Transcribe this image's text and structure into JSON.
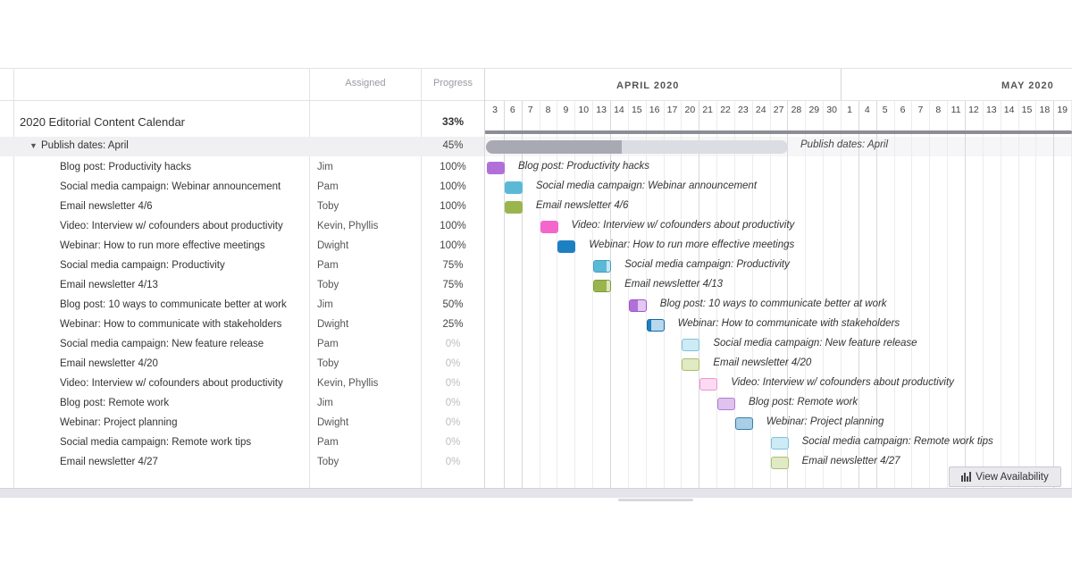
{
  "grid": {
    "columns": {
      "assigned": "Assigned",
      "progress": "Progress"
    },
    "project": {
      "name": "2020 Editorial Content Calendar",
      "progress": "33%"
    },
    "group": {
      "name": "Publish dates: April",
      "progress": "45%",
      "progress_value": 0.45
    },
    "tasks": [
      {
        "name": "Blog post: Productivity hacks",
        "assigned": "Jim",
        "progress": "100%",
        "progress_value": 1.0,
        "start_day": 0,
        "color": "#b070d8",
        "light": "#e2c8f2",
        "border": "#9a58c4"
      },
      {
        "name": "Social media campaign: Webinar announcement",
        "assigned": "Pam",
        "progress": "100%",
        "progress_value": 1.0,
        "start_day": 1,
        "color": "#5bb9d6",
        "light": "#c6e7f2",
        "border": "#3c9fbd"
      },
      {
        "name": "Email newsletter 4/6",
        "assigned": "Toby",
        "progress": "100%",
        "progress_value": 1.0,
        "start_day": 1,
        "color": "#9ab54e",
        "light": "#dbe7b9",
        "border": "#7f9c36"
      },
      {
        "name": "Video: Interview w/ cofounders about productivity",
        "assigned": "Kevin, Phyllis",
        "progress": "100%",
        "progress_value": 1.0,
        "start_day": 3,
        "color": "#f466cc",
        "light": "#fcd0ef",
        "border": "#e04ab5"
      },
      {
        "name": "Webinar: How to run more effective meetings",
        "assigned": "Dwight",
        "progress": "100%",
        "progress_value": 1.0,
        "start_day": 4,
        "color": "#1c80c2",
        "light": "#b8d8ee",
        "border": "#14679f"
      },
      {
        "name": "Social media campaign: Productivity",
        "assigned": "Pam",
        "progress": "75%",
        "progress_value": 0.75,
        "start_day": 6,
        "color": "#5bb9d6",
        "light": "#c6e7f2",
        "border": "#3c9fbd"
      },
      {
        "name": "Email newsletter 4/13",
        "assigned": "Toby",
        "progress": "75%",
        "progress_value": 0.75,
        "start_day": 6,
        "color": "#9ab54e",
        "light": "#dbe7b9",
        "border": "#7f9c36"
      },
      {
        "name": "Blog post: 10 ways to communicate better at work",
        "assigned": "Jim",
        "progress": "50%",
        "progress_value": 0.5,
        "start_day": 8,
        "color": "#b070d8",
        "light": "#e2c8f2",
        "border": "#9a58c4"
      },
      {
        "name": "Webinar: How to communicate with stakeholders",
        "assigned": "Dwight",
        "progress": "25%",
        "progress_value": 0.25,
        "start_day": 9,
        "color": "#1c80c2",
        "light": "#b8d8ee",
        "border": "#14679f"
      },
      {
        "name": "Social media campaign: New feature release",
        "assigned": "Pam",
        "progress": "0%",
        "progress_value": 0,
        "start_day": 11,
        "color": "#5bb9d6",
        "light": "#cdebf5",
        "border": "#7cc3da"
      },
      {
        "name": "Email newsletter 4/20",
        "assigned": "Toby",
        "progress": "0%",
        "progress_value": 0,
        "start_day": 11,
        "color": "#9ab54e",
        "light": "#e0eac4",
        "border": "#a9c06a"
      },
      {
        "name": "Video: Interview w/ cofounders about productivity",
        "assigned": "Kevin, Phyllis",
        "progress": "0%",
        "progress_value": 0,
        "start_day": 12,
        "color": "#f466cc",
        "light": "#fcdaf2",
        "border": "#f292d6"
      },
      {
        "name": "Blog post: Remote work",
        "assigned": "Jim",
        "progress": "0%",
        "progress_value": 0,
        "start_day": 13,
        "color": "#b070d8",
        "light": "#dfc2ef",
        "border": "#b07fd0"
      },
      {
        "name": "Webinar: Project planning",
        "assigned": "Dwight",
        "progress": "0%",
        "progress_value": 0,
        "start_day": 14,
        "color": "#1c80c2",
        "light": "#a9cfe6",
        "border": "#3a7ea8"
      },
      {
        "name": "Social media campaign: Remote work tips",
        "assigned": "Pam",
        "progress": "0%",
        "progress_value": 0,
        "start_day": 16,
        "color": "#5bb9d6",
        "light": "#cdebf5",
        "border": "#7cc3da"
      },
      {
        "name": "Email newsletter 4/27",
        "assigned": "Toby",
        "progress": "0%",
        "progress_value": 0,
        "start_day": 16,
        "color": "#9ab54e",
        "light": "#e0eac4",
        "border": "#a9c06a"
      }
    ]
  },
  "timeline": {
    "months": [
      {
        "label": "APRIL 2020"
      },
      {
        "label": "MAY 2020"
      }
    ],
    "days": [
      "3",
      "6",
      "7",
      "8",
      "9",
      "10",
      "13",
      "14",
      "15",
      "16",
      "17",
      "20",
      "21",
      "22",
      "23",
      "24",
      "27",
      "28",
      "29",
      "30",
      "1",
      "4",
      "5",
      "6",
      "7",
      "8",
      "11",
      "12",
      "13",
      "14",
      "15",
      "18",
      "19"
    ],
    "week_start_indices": [
      0,
      1,
      6,
      11,
      16,
      20,
      21,
      26,
      31
    ]
  },
  "buttons": {
    "view_availability": "View Availability"
  },
  "icons": {
    "toggle": "caret-down-icon",
    "availability": "bar-chart-icon"
  }
}
